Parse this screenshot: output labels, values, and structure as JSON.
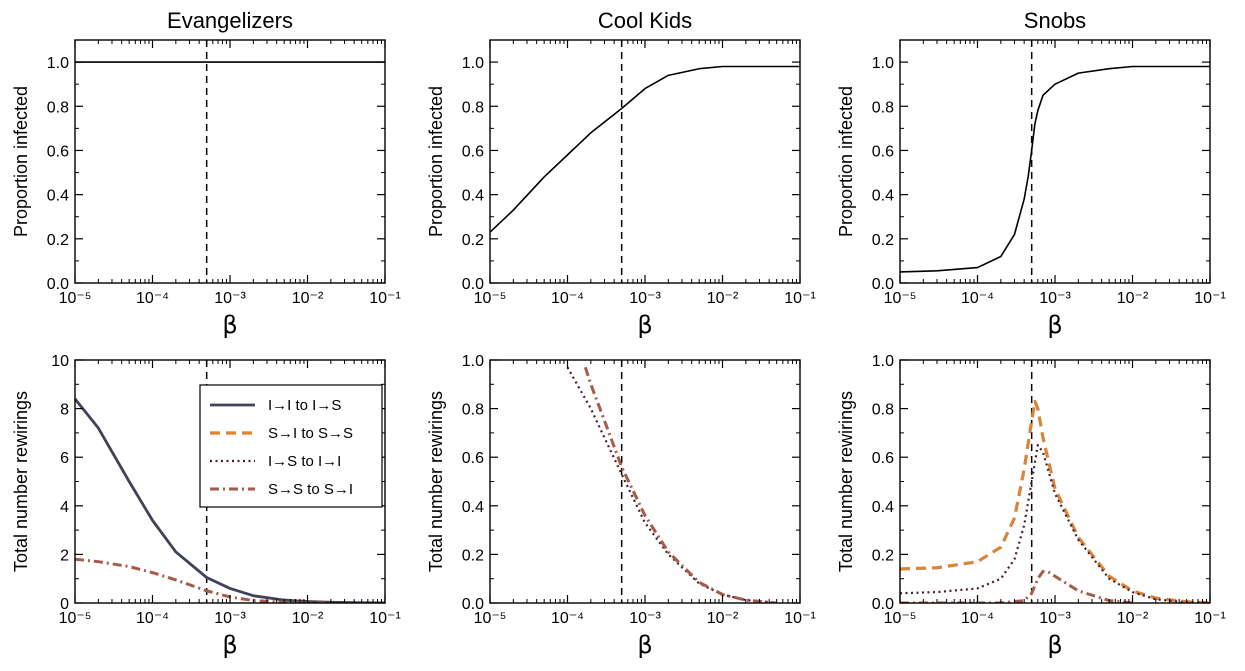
{
  "colors": {
    "solid": "#3f4356",
    "dashed": "#d8843a",
    "dotted": "#4a1d2b",
    "dashdot": "#a55a4a",
    "axis": "#000000"
  },
  "legend": {
    "entries": [
      {
        "label": "I→I to I→S",
        "style": "solid"
      },
      {
        "label": "S→I to S→S",
        "style": "dashed"
      },
      {
        "label": "I→S to I→I",
        "style": "dotted"
      },
      {
        "label": "S→S to S→I",
        "style": "dashdot"
      }
    ]
  },
  "chart_data": [
    {
      "type": "line",
      "title": "Evangelizers",
      "xlabel": "β",
      "ylabel": "Proportion infected",
      "xscale": "log",
      "xlim": [
        1e-05,
        0.1
      ],
      "ylim": [
        0,
        1.1
      ],
      "xticks": [
        "10⁻⁵",
        "10⁻⁴",
        "10⁻³",
        "10⁻²",
        "10⁻¹"
      ],
      "yticks": [
        "0.0",
        "0.2",
        "0.4",
        "0.6",
        "0.8",
        "1.0"
      ],
      "vline": 0.0005,
      "series": [
        {
          "style": "solid",
          "x": [
            1e-05,
            0.0001,
            0.001,
            0.01,
            0.1
          ],
          "y": [
            1.0,
            1.0,
            1.0,
            1.0,
            1.0
          ]
        }
      ]
    },
    {
      "type": "line",
      "title": "Cool Kids",
      "xlabel": "β",
      "ylabel": "Proportion infected",
      "xscale": "log",
      "xlim": [
        1e-05,
        0.1
      ],
      "ylim": [
        0,
        1.1
      ],
      "xticks": [
        "10⁻⁵",
        "10⁻⁴",
        "10⁻³",
        "10⁻²",
        "10⁻¹"
      ],
      "yticks": [
        "0.0",
        "0.2",
        "0.4",
        "0.6",
        "0.8",
        "1.0"
      ],
      "vline": 0.0005,
      "series": [
        {
          "style": "solid",
          "x": [
            1e-05,
            2e-05,
            5e-05,
            0.0001,
            0.0002,
            0.0005,
            0.001,
            0.002,
            0.005,
            0.01,
            0.02,
            0.05,
            0.1
          ],
          "y": [
            0.23,
            0.33,
            0.48,
            0.58,
            0.68,
            0.79,
            0.88,
            0.94,
            0.97,
            0.98,
            0.98,
            0.98,
            0.98
          ]
        }
      ]
    },
    {
      "type": "line",
      "title": "Snobs",
      "xlabel": "β",
      "ylabel": "Proportion infected",
      "xscale": "log",
      "xlim": [
        1e-05,
        0.1
      ],
      "ylim": [
        0,
        1.1
      ],
      "xticks": [
        "10⁻⁵",
        "10⁻⁴",
        "10⁻³",
        "10⁻²",
        "10⁻¹"
      ],
      "yticks": [
        "0.0",
        "0.2",
        "0.4",
        "0.6",
        "0.8",
        "1.0"
      ],
      "vline": 0.0005,
      "series": [
        {
          "style": "solid",
          "x": [
            1e-05,
            3e-05,
            0.0001,
            0.0002,
            0.0003,
            0.0004,
            0.00045,
            0.0005,
            0.00055,
            0.0006,
            0.0007,
            0.001,
            0.002,
            0.005,
            0.01,
            0.1
          ],
          "y": [
            0.05,
            0.055,
            0.07,
            0.12,
            0.22,
            0.38,
            0.48,
            0.6,
            0.72,
            0.78,
            0.85,
            0.9,
            0.95,
            0.97,
            0.98,
            0.98
          ]
        }
      ]
    },
    {
      "type": "line",
      "title": "",
      "xlabel": "β",
      "ylabel": "Total number rewirings",
      "xscale": "log",
      "xlim": [
        1e-05,
        0.1
      ],
      "ylim": [
        0,
        10
      ],
      "xticks": [
        "10⁻⁵",
        "10⁻⁴",
        "10⁻³",
        "10⁻²",
        "10⁻¹"
      ],
      "yticks": [
        "0",
        "2",
        "4",
        "6",
        "8",
        "10"
      ],
      "vline": 0.0005,
      "legend": "top-right",
      "series": [
        {
          "style": "solid",
          "x": [
            1e-05,
            2e-05,
            5e-05,
            0.0001,
            0.0002,
            0.0005,
            0.001,
            0.002,
            0.005,
            0.01,
            0.02,
            0.05,
            0.1
          ],
          "y": [
            8.4,
            7.2,
            5.0,
            3.4,
            2.1,
            1.05,
            0.6,
            0.3,
            0.12,
            0.06,
            0.03,
            0.01,
            0.005
          ]
        },
        {
          "style": "dashdot",
          "x": [
            1e-05,
            2e-05,
            5e-05,
            0.0001,
            0.0002,
            0.0005,
            0.001,
            0.002,
            0.005,
            0.01,
            0.02
          ],
          "y": [
            1.8,
            1.7,
            1.5,
            1.25,
            0.95,
            0.5,
            0.25,
            0.1,
            0.03,
            0.01,
            0.0
          ]
        }
      ]
    },
    {
      "type": "line",
      "title": "",
      "xlabel": "β",
      "ylabel": "Total number rewirings",
      "xscale": "log",
      "xlim": [
        1e-05,
        0.1
      ],
      "ylim": [
        0,
        1
      ],
      "xticks": [
        "10⁻⁵",
        "10⁻⁴",
        "10⁻³",
        "10⁻²",
        "10⁻¹"
      ],
      "yticks": [
        "0.0",
        "0.2",
        "0.4",
        "0.6",
        "0.8",
        "1.0"
      ],
      "vline": 0.0005,
      "series": [
        {
          "style": "dotted",
          "x": [
            0.0001,
            0.0002,
            0.0003,
            0.0005,
            0.001,
            0.002,
            0.005,
            0.01,
            0.02,
            0.05
          ],
          "y": [
            0.97,
            0.8,
            0.68,
            0.53,
            0.33,
            0.2,
            0.08,
            0.035,
            0.012,
            0.0
          ]
        },
        {
          "style": "dashdot",
          "x": [
            0.00017,
            0.0002,
            0.0003,
            0.0005,
            0.001,
            0.002,
            0.005,
            0.01,
            0.02,
            0.05
          ],
          "y": [
            0.97,
            0.9,
            0.75,
            0.56,
            0.36,
            0.21,
            0.085,
            0.035,
            0.012,
            0.0
          ]
        }
      ]
    },
    {
      "type": "line",
      "title": "",
      "xlabel": "β",
      "ylabel": "Total number rewirings",
      "xscale": "log",
      "xlim": [
        1e-05,
        0.1
      ],
      "ylim": [
        0,
        1
      ],
      "xticks": [
        "10⁻⁵",
        "10⁻⁴",
        "10⁻³",
        "10⁻²",
        "10⁻¹"
      ],
      "yticks": [
        "0.0",
        "0.2",
        "0.4",
        "0.6",
        "0.8",
        "1.0"
      ],
      "vline": 0.0005,
      "series": [
        {
          "style": "dashed",
          "x": [
            1e-05,
            3e-05,
            0.0001,
            0.0002,
            0.0003,
            0.0004,
            0.0005,
            0.00055,
            0.0006,
            0.0007,
            0.001,
            0.002,
            0.005,
            0.01,
            0.02,
            0.05,
            0.1
          ],
          "y": [
            0.14,
            0.145,
            0.17,
            0.23,
            0.35,
            0.55,
            0.75,
            0.83,
            0.8,
            0.68,
            0.47,
            0.27,
            0.11,
            0.05,
            0.02,
            0.005,
            0.0
          ]
        },
        {
          "style": "dotted",
          "x": [
            1e-05,
            3e-05,
            0.0001,
            0.0002,
            0.0003,
            0.0004,
            0.0005,
            0.0006,
            0.0007,
            0.001,
            0.002,
            0.005,
            0.01,
            0.02,
            0.05,
            0.1
          ],
          "y": [
            0.04,
            0.045,
            0.06,
            0.1,
            0.18,
            0.32,
            0.5,
            0.65,
            0.62,
            0.45,
            0.26,
            0.1,
            0.045,
            0.015,
            0.003,
            0.0
          ]
        },
        {
          "style": "dashdot",
          "x": [
            1e-05,
            0.0002,
            0.0004,
            0.0005,
            0.0006,
            0.0007,
            0.0008,
            0.001,
            0.002,
            0.005,
            0.01
          ],
          "y": [
            0.0,
            0.0,
            0.01,
            0.04,
            0.1,
            0.13,
            0.13,
            0.11,
            0.05,
            0.01,
            0.0
          ]
        }
      ]
    }
  ]
}
